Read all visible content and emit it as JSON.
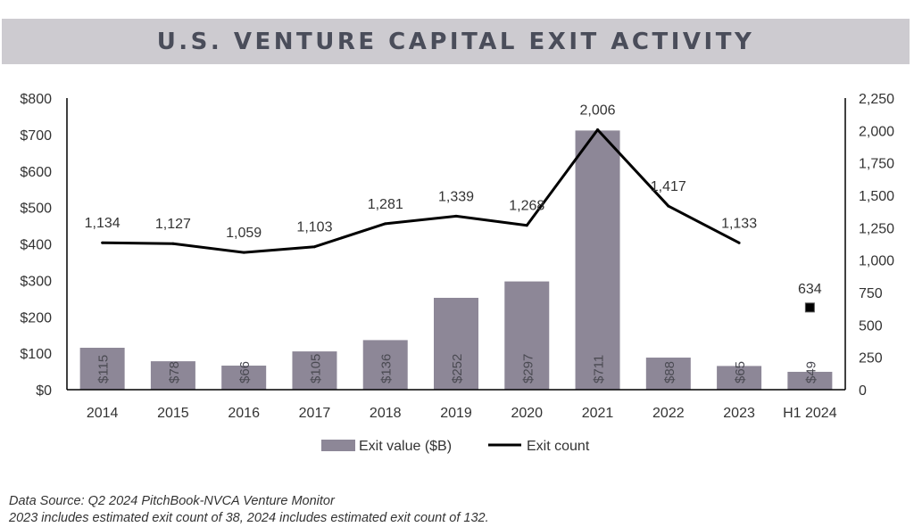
{
  "title": "U.S. VENTURE CAPITAL EXIT ACTIVITY",
  "chart_data": {
    "type": "bar",
    "categories": [
      "2014",
      "2015",
      "2016",
      "2017",
      "2018",
      "2019",
      "2020",
      "2021",
      "2022",
      "2023",
      "H1 2024"
    ],
    "series": [
      {
        "name": "Exit value ($B)",
        "type": "bar",
        "axis": "left",
        "values": [
          115,
          78,
          66,
          105,
          136,
          252,
          297,
          711,
          88,
          65,
          49
        ],
        "labels": [
          "$115",
          "$78",
          "$66",
          "$105",
          "$136",
          "$252",
          "$297",
          "$711",
          "$88",
          "$65",
          "$49"
        ]
      },
      {
        "name": "Exit count",
        "type": "line",
        "axis": "right",
        "values": [
          1134,
          1127,
          1059,
          1103,
          1281,
          1339,
          1268,
          2006,
          1417,
          1133,
          null
        ],
        "labels": [
          "1,134",
          "1,127",
          "1,059",
          "1,103",
          "1,281",
          "1,339",
          "1,268",
          "2,006",
          "1,417",
          "1,133",
          ""
        ]
      }
    ],
    "marker": {
      "category": "H1 2024",
      "value": 634,
      "label": "634"
    },
    "y_left": {
      "min": 0,
      "max": 800,
      "ticks": [
        0,
        100,
        200,
        300,
        400,
        500,
        600,
        700,
        800
      ],
      "tick_labels": [
        "$0",
        "$100",
        "$200",
        "$300",
        "$400",
        "$500",
        "$600",
        "$700",
        "$800"
      ]
    },
    "y_right": {
      "min": 0,
      "max": 2250,
      "ticks": [
        0,
        250,
        500,
        750,
        1000,
        1250,
        1500,
        1750,
        2000,
        2250
      ],
      "tick_labels": [
        "0",
        "250",
        "500",
        "750",
        "1,000",
        "1,250",
        "1,500",
        "1,750",
        "2,000",
        "2,250"
      ]
    },
    "grid": false,
    "legend_position": "bottom",
    "colors": {
      "bar": "#8d8797",
      "line": "#000000",
      "marker": "#000000"
    }
  },
  "footnotes": [
    "Data Source:  Q2 2024 PitchBook-NVCA Venture Monitor",
    "2023 includes estimated exit count of 38, 2024 includes estimated exit count of 132."
  ]
}
